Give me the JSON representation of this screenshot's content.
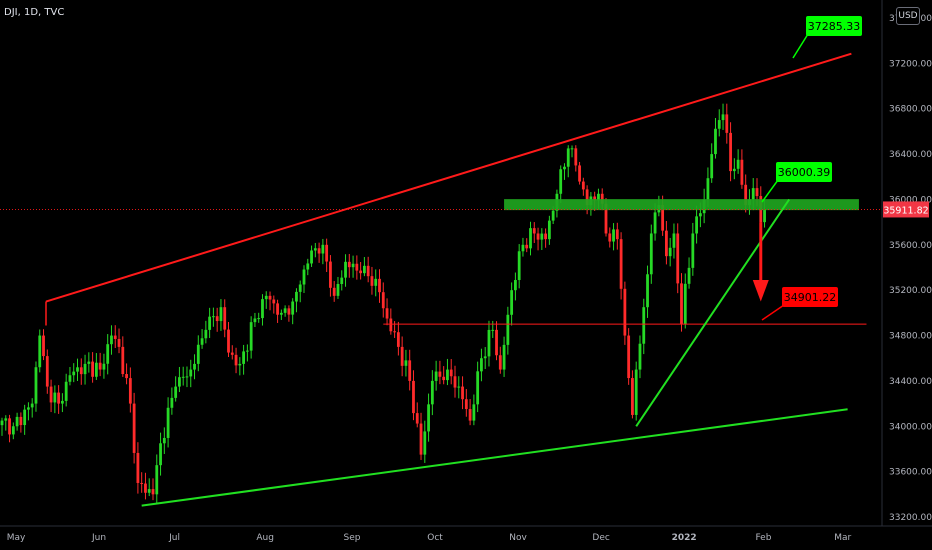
{
  "header": {
    "symbol": "DJI, 1D, TVC",
    "currency": "USD"
  },
  "price_tag": {
    "value": "35911.82",
    "color": "#f23645"
  },
  "callouts": {
    "upper": {
      "label": "37285.33",
      "bg": "#00ff00"
    },
    "mid": {
      "label": "36000.39",
      "bg": "#00ff00"
    },
    "target": {
      "label": "34901.22",
      "bg": "#ff0000"
    }
  },
  "colors": {
    "up": "#26d926",
    "down": "#ff2b2b",
    "red_line": "#ff1a1a",
    "green_line": "#21e021",
    "zone": "#1fa51f"
  },
  "chart_data": {
    "type": "candlestick",
    "title": "",
    "xlabel": "",
    "ylabel": "",
    "ylim": [
      33200,
      37600
    ],
    "y_ticks": [
      "37600.00",
      "37200.00",
      "36800.00",
      "36400.00",
      "36000.00",
      "35600.00",
      "35200.00",
      "34800.00",
      "34400.00",
      "34000.00",
      "33600.00",
      "33200.00"
    ],
    "x_ticks": [
      "May",
      "Jun",
      "Jul",
      "Aug",
      "Sep",
      "Oct",
      "Nov",
      "Dec",
      "2022",
      "Feb",
      "Mar"
    ],
    "anchors": [
      [
        0,
        34050
      ],
      [
        3,
        34000
      ],
      [
        8,
        34200
      ],
      [
        10,
        34800
      ],
      [
        12,
        34350
      ],
      [
        15,
        34200
      ],
      [
        18,
        34450
      ],
      [
        22,
        34550
      ],
      [
        26,
        34500
      ],
      [
        29,
        34800
      ],
      [
        31,
        34700
      ],
      [
        34,
        34200
      ],
      [
        36,
        33500
      ],
      [
        40,
        33400
      ],
      [
        42,
        33850
      ],
      [
        46,
        34350
      ],
      [
        50,
        34500
      ],
      [
        54,
        34850
      ],
      [
        58,
        35050
      ],
      [
        60,
        34650
      ],
      [
        63,
        34550
      ],
      [
        67,
        34950
      ],
      [
        70,
        35150
      ],
      [
        74,
        35000
      ],
      [
        77,
        35100
      ],
      [
        79,
        35250
      ],
      [
        82,
        35550
      ],
      [
        85,
        35600
      ],
      [
        88,
        35150
      ],
      [
        91,
        35450
      ],
      [
        95,
        35350
      ],
      [
        99,
        35300
      ],
      [
        102,
        34950
      ],
      [
        105,
        34700
      ],
      [
        108,
        34400
      ],
      [
        111,
        33750
      ],
      [
        114,
        34400
      ],
      [
        118,
        34500
      ],
      [
        121,
        34350
      ],
      [
        124,
        34050
      ],
      [
        127,
        34600
      ],
      [
        130,
        34850
      ],
      [
        132,
        34500
      ],
      [
        135,
        35200
      ],
      [
        138,
        35600
      ],
      [
        141,
        35700
      ],
      [
        144,
        35650
      ],
      [
        147,
        36050
      ],
      [
        150,
        36450
      ],
      [
        152,
        36300
      ],
      [
        155,
        35950
      ],
      [
        158,
        36050
      ],
      [
        160,
        35700
      ],
      [
        163,
        35650
      ],
      [
        165,
        34800
      ],
      [
        167,
        34100
      ],
      [
        168,
        34500
      ],
      [
        170,
        35050
      ],
      [
        172,
        35700
      ],
      [
        174,
        35950
      ],
      [
        176,
        35500
      ],
      [
        178,
        35700
      ],
      [
        180,
        34900
      ],
      [
        183,
        35700
      ],
      [
        186,
        36000
      ],
      [
        188,
        36400
      ],
      [
        190,
        36700
      ],
      [
        191,
        36750
      ],
      [
        193,
        36250
      ],
      [
        195,
        36350
      ],
      [
        197,
        35950
      ],
      [
        199,
        36100
      ],
      [
        201,
        35800
      ],
      [
        202,
        35911.82
      ]
    ],
    "annotations": {
      "upper_channel": {
        "from": [
          0,
          35100
        ],
        "to": [
          225,
          37285.33
        ]
      },
      "lower_channel": {
        "from": [
          37,
          33300
        ],
        "to": [
          224,
          34150
        ]
      },
      "rising_trend": {
        "from": [
          168,
          34000
        ],
        "to": [
          208,
          36000.39
        ]
      },
      "resistance_zone": {
        "y": 35950,
        "x_from": 133,
        "x_to": 227
      },
      "target_level": {
        "y": 34901.22,
        "x_from": 101,
        "x_to": 229
      },
      "last_price": 35911.82
    }
  }
}
